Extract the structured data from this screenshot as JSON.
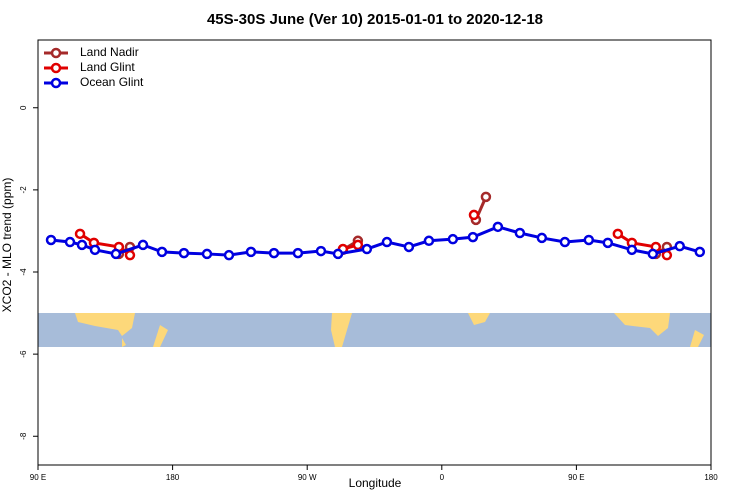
{
  "chart_data": {
    "type": "line",
    "title": "45S-30S June (Ver 10)   2015-01-01 to 2020-12-18",
    "x_label": "Longitude",
    "y_label": "XCO2 - MLO trend (ppm)",
    "xlim": [
      90,
      540
    ],
    "ylim": [
      -8.7,
      1.65
    ],
    "xticks": [
      {
        "value": 90,
        "label": "90 E"
      },
      180,
      {
        "value": 270,
        "label": "90 W"
      },
      {
        "value": 360,
        "label": "0"
      },
      {
        "value": 450,
        "label": "90 E"
      },
      {
        "value": 540,
        "label": "180"
      }
    ],
    "yticks": [
      -8,
      -6,
      -4,
      -2,
      0
    ],
    "legend": "top-left",
    "series": [
      {
        "name": "Land Nadir",
        "color": "#a52a2a",
        "x": [
          144.1,
          151.5,
          null,
          293.9,
          303.9,
          null,
          382.8,
          389.5,
          null,
          503.1,
          510.5
        ],
        "values": [
          -3.56,
          -3.39,
          null,
          -3.46,
          -3.24,
          null,
          -2.73,
          -2.17,
          null,
          -3.56,
          -3.39
        ]
      },
      {
        "name": "Land Glint",
        "color": "#e00000",
        "x": [
          118.1,
          127.4,
          144.1,
          151.5,
          null,
          293.9,
          303.9,
          null,
          381.5,
          null,
          477.7,
          487.1,
          503.1,
          510.5
        ],
        "values": [
          -3.07,
          -3.29,
          -3.39,
          -3.59,
          null,
          -3.44,
          -3.34,
          null,
          -2.61,
          null,
          -3.07,
          -3.29,
          -3.39,
          -3.59
        ]
      },
      {
        "name": "Ocean Glint",
        "color": "#0000e0",
        "x": [
          98.7,
          111.4,
          119.4,
          128.1,
          142.1,
          160.2,
          172.9,
          187.6,
          203,
          217.7,
          232.4,
          247.8,
          263.8,
          279.2,
          290.6,
          309.9,
          323.3,
          338,
          351.4,
          367.4,
          380.8,
          397.5,
          412.2,
          426.9,
          442.3,
          458.3,
          471,
          487.1,
          501.1,
          519.1,
          532.5
        ],
        "values": [
          -3.22,
          -3.27,
          -3.34,
          -3.46,
          -3.56,
          -3.34,
          -3.51,
          -3.54,
          -3.56,
          -3.59,
          -3.51,
          -3.54,
          -3.54,
          -3.49,
          -3.56,
          -3.44,
          -3.27,
          -3.39,
          -3.24,
          -3.2,
          -3.15,
          -2.9,
          -3.05,
          -3.17,
          -3.27,
          -3.22,
          -3.29,
          -3.46,
          -3.56,
          -3.37,
          -3.51
        ]
      }
    ]
  }
}
